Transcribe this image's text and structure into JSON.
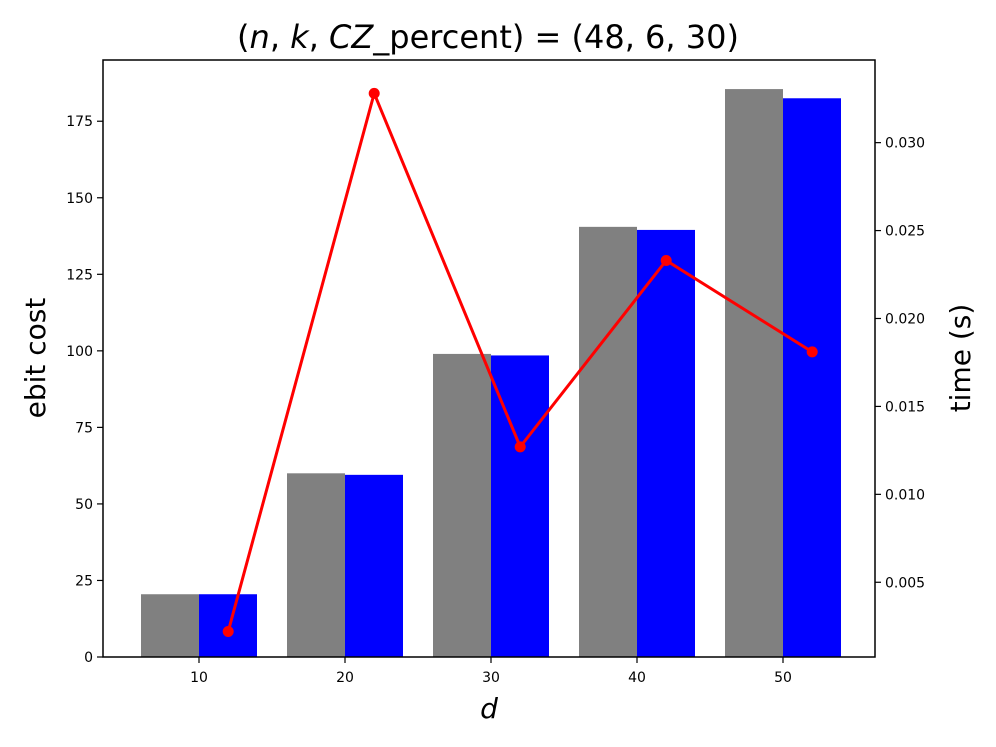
{
  "chart_data": {
    "type": "bar",
    "title": "(n, k, CZ_percent) = (48, 6, 30)",
    "title_parts": {
      "open": "(",
      "n": "n",
      "sep1": ", ",
      "k": "k",
      "sep2": ", ",
      "cz": "CZ",
      "percent": "_percent",
      "mid": ") = (48, 6, 30)"
    },
    "xlabel": "d",
    "ylabel": "ebit cost",
    "y2label": "time (s)",
    "categories": [
      "10",
      "20",
      "30",
      "40",
      "50"
    ],
    "x": [
      10,
      20,
      30,
      40,
      50
    ],
    "ylim": [
      0,
      195
    ],
    "y2lim": [
      0.00075,
      0.0347
    ],
    "yticks": [
      0,
      25,
      50,
      75,
      100,
      125,
      150,
      175
    ],
    "y2ticks": [
      0.005,
      0.01,
      0.015,
      0.02,
      0.025,
      0.03
    ],
    "y2tick_labels": [
      "0.005",
      "0.010",
      "0.015",
      "0.020",
      "0.025",
      "0.030"
    ],
    "series": [
      {
        "values": [
          20.5,
          60,
          99,
          140.5,
          185.5
        ],
        "color": "#808080",
        "kind": "bar"
      },
      {
        "values": [
          20.5,
          59.5,
          98.5,
          139.5,
          182.5
        ],
        "color": "#0000ff",
        "kind": "bar"
      },
      {
        "x": [
          12,
          22,
          32,
          42,
          52
        ],
        "values": [
          0.0022,
          0.0328,
          0.0127,
          0.0233,
          0.0181
        ],
        "color": "#ff0000",
        "kind": "line",
        "axis": "right"
      }
    ],
    "grid": false,
    "legend": "none"
  }
}
